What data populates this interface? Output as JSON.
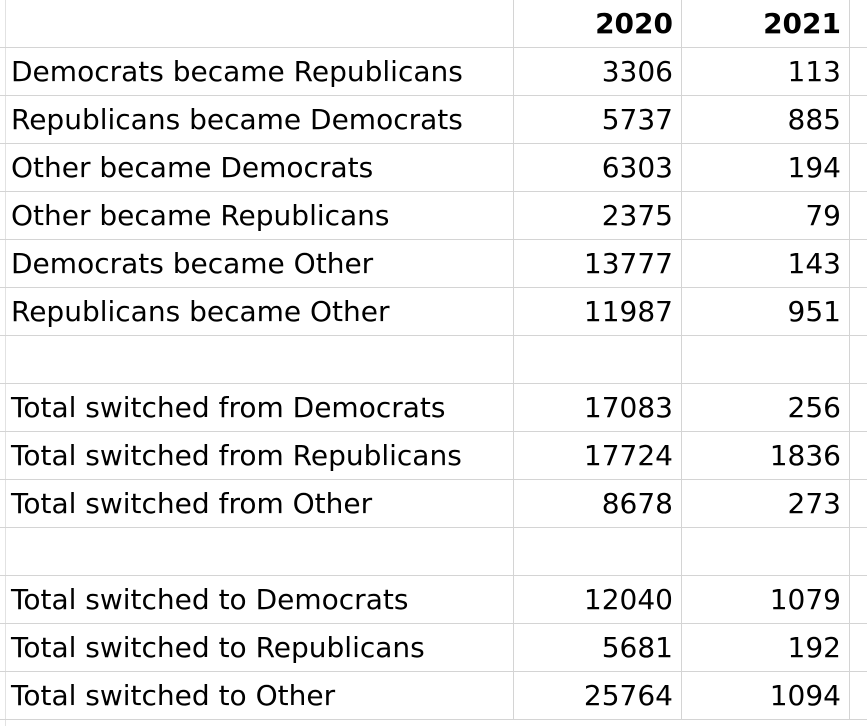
{
  "header": {
    "label": "",
    "col2020": "2020",
    "col2021": "2021"
  },
  "rows": [
    {
      "label": "Democrats became Republicans",
      "v2020": "3306",
      "v2021": "113"
    },
    {
      "label": "Republicans became Democrats",
      "v2020": "5737",
      "v2021": "885"
    },
    {
      "label": "Other became Democrats",
      "v2020": "6303",
      "v2021": "194"
    },
    {
      "label": "Other became Republicans",
      "v2020": "2375",
      "v2021": "79"
    },
    {
      "label": "Democrats became Other",
      "v2020": "13777",
      "v2021": "143"
    },
    {
      "label": "Republicans became Other",
      "v2020": "11987",
      "v2021": "951"
    },
    {
      "label": "",
      "v2020": "",
      "v2021": ""
    },
    {
      "label": "Total switched  from Democrats",
      "v2020": "17083",
      "v2021": "256"
    },
    {
      "label": "Total switched  from Republicans",
      "v2020": "17724",
      "v2021": "1836"
    },
    {
      "label": "Total switched  from Other",
      "v2020": "8678",
      "v2021": "273"
    },
    {
      "label": "",
      "v2020": "",
      "v2021": ""
    },
    {
      "label": "Total switched to Democrats",
      "v2020": "12040",
      "v2021": "1079"
    },
    {
      "label": "Total switched to Republicans",
      "v2020": "5681",
      "v2021": "192"
    },
    {
      "label": "Total switched to Other",
      "v2020": "25764",
      "v2021": "1094"
    }
  ]
}
